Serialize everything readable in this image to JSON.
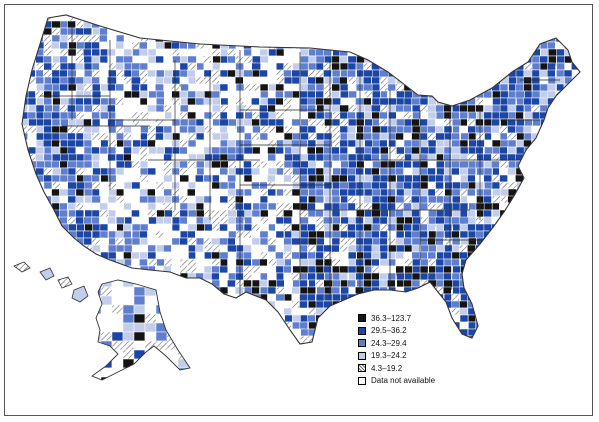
{
  "legend": {
    "items": [
      {
        "label": "36.3–123.7",
        "color": "#141414",
        "pattern": "solid"
      },
      {
        "label": "29.5–36.2",
        "color": "#1c46a5",
        "pattern": "solid"
      },
      {
        "label": "24.3–29.4",
        "color": "#5f7fce",
        "pattern": "solid"
      },
      {
        "label": "19.3–24.2",
        "color": "#c2cdec",
        "pattern": "solid"
      },
      {
        "label": "4.3–19.2",
        "color": "#ffffff",
        "pattern": "hatch"
      },
      {
        "label": "Data not available",
        "color": "#ffffff",
        "pattern": "none"
      }
    ]
  },
  "colors": {
    "outline": "#333333",
    "county_border": "#ffffff",
    "hatch_line": "#666666"
  }
}
